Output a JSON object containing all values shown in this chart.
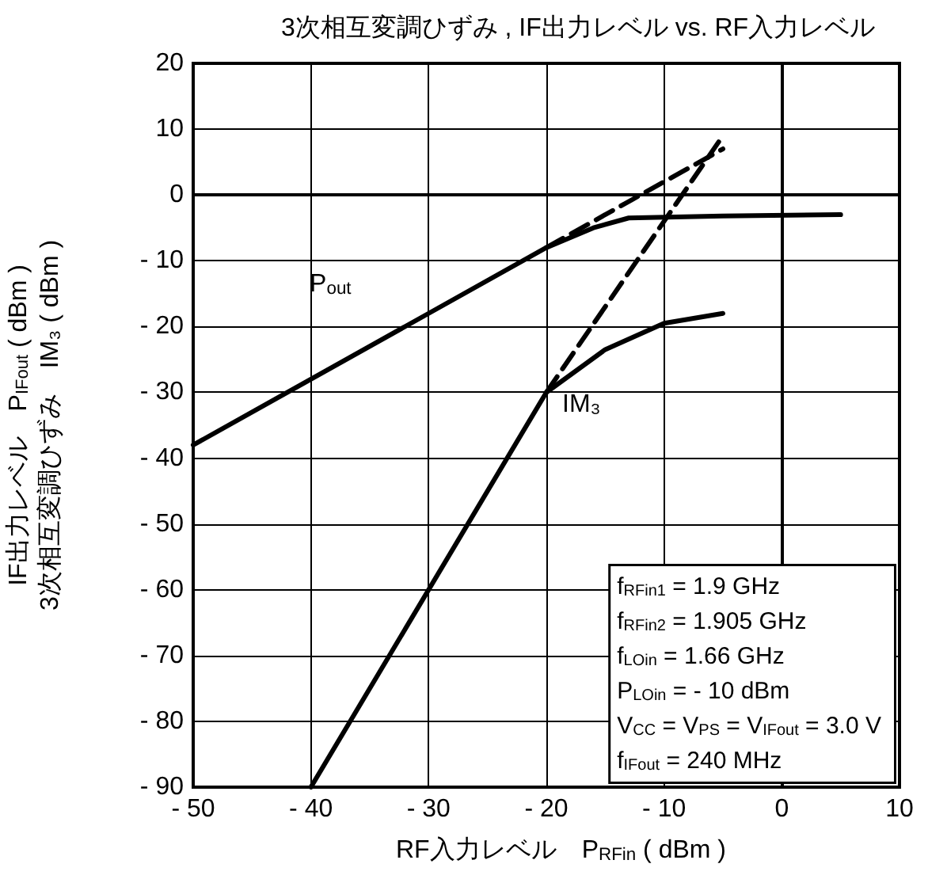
{
  "chart_data": {
    "type": "line",
    "title": "3次相互変調ひずみ , IF出力レベル vs. RF入力レベル",
    "xlabel": "RF入力レベル　P$_{RFin}$ ( dBm )",
    "ylabel": "IF出力レベル　P$_{IFout}$ ( dBm )\n3次相互変調ひずみ　IM₃ ( dBm )",
    "xlim": [
      -50,
      10
    ],
    "xticks": [
      {
        "value": -50,
        "label": "- 50"
      },
      {
        "value": -40,
        "label": "- 40"
      },
      {
        "value": -30,
        "label": "- 30"
      },
      {
        "value": -20,
        "label": "- 20"
      },
      {
        "value": -10,
        "label": "- 10"
      },
      0,
      10
    ],
    "ylim": [
      -90,
      20
    ],
    "yticks": [
      {
        "value": -90,
        "label": "- 90"
      },
      {
        "value": -80,
        "label": "- 80"
      },
      {
        "value": -70,
        "label": "- 70"
      },
      {
        "value": -60,
        "label": "- 60"
      },
      {
        "value": -50,
        "label": "- 50"
      },
      {
        "value": -40,
        "label": "- 40"
      },
      {
        "value": -30,
        "label": "- 30"
      },
      {
        "value": -20,
        "label": "- 20"
      },
      {
        "value": -10,
        "label": "- 10"
      },
      0,
      10,
      20
    ],
    "grid": true,
    "marker": "none",
    "series": [
      {
        "name": "P$_{out}$",
        "color": "#000000",
        "line_style": "solid",
        "x": [
          -50,
          -30,
          -20,
          -16,
          -13,
          -5,
          5
        ],
        "values": [
          -38,
          -18,
          -8,
          -5,
          -3.5,
          -3.2,
          -3
        ]
      },
      {
        "color": "#000000",
        "line_style": "dashed",
        "x": [
          -20,
          -5
        ],
        "values": [
          -8,
          7
        ]
      },
      {
        "name": "IM₃",
        "color": "#000000",
        "line_style": "solid",
        "x": [
          -40,
          -20,
          -15,
          -10,
          -5
        ],
        "values": [
          -90,
          -30,
          -23.5,
          -19.5,
          -18
        ]
      },
      {
        "color": "#000000",
        "line_style": "dashed",
        "x": [
          -20,
          -5
        ],
        "values": [
          -30,
          9
        ]
      }
    ],
    "annotations": [
      "f$_{RFin1}$ = 1.9 GHz",
      "f$_{RFin2}$ = 1.905 GHz",
      "f$_{LOin}$ = 1.66 GHz",
      "P$_{LOin}$ = - 10 dBm",
      "V$_{CC}$ = V$_{PS}$ = V$_{IFout}$ = 3.0 V",
      "f$_{IFout}$ = 240 MHz"
    ]
  }
}
